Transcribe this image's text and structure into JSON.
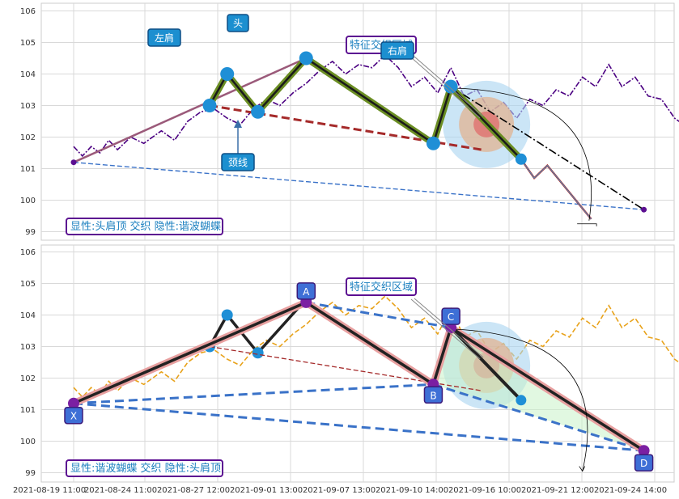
{
  "chart_data": [
    {
      "type": "line",
      "panel": "top",
      "ylim": [
        98.8,
        106.2
      ],
      "yticks": [
        99,
        100,
        101,
        102,
        103,
        104,
        105,
        106
      ],
      "grid": true,
      "price_series": {
        "color": "#4b0082",
        "points": [
          [
            0.0,
            101.7
          ],
          [
            0.2,
            101.4
          ],
          [
            0.4,
            101.7
          ],
          [
            0.6,
            101.5
          ],
          [
            0.8,
            101.9
          ],
          [
            1.0,
            101.6
          ],
          [
            1.3,
            102.0
          ],
          [
            1.6,
            101.8
          ],
          [
            2.0,
            102.2
          ],
          [
            2.3,
            101.9
          ],
          [
            2.6,
            102.5
          ],
          [
            2.9,
            102.8
          ],
          [
            3.2,
            102.9
          ],
          [
            3.5,
            102.6
          ],
          [
            3.8,
            102.4
          ],
          [
            4.1,
            102.9
          ],
          [
            4.4,
            103.2
          ],
          [
            4.7,
            103.0
          ],
          [
            5.0,
            103.4
          ],
          [
            5.3,
            103.7
          ],
          [
            5.6,
            104.1
          ],
          [
            5.9,
            104.4
          ],
          [
            6.2,
            104.0
          ],
          [
            6.5,
            104.3
          ],
          [
            6.8,
            104.2
          ],
          [
            7.1,
            104.6
          ],
          [
            7.4,
            104.2
          ],
          [
            7.7,
            103.6
          ],
          [
            8.0,
            103.9
          ],
          [
            8.3,
            103.4
          ],
          [
            8.6,
            104.2
          ],
          [
            8.9,
            103.3
          ],
          [
            9.2,
            103.5
          ],
          [
            9.5,
            102.8
          ],
          [
            9.8,
            103.1
          ],
          [
            10.1,
            102.6
          ],
          [
            10.4,
            103.2
          ],
          [
            10.7,
            103.0
          ],
          [
            11.0,
            103.5
          ],
          [
            11.3,
            103.3
          ],
          [
            11.6,
            103.9
          ],
          [
            11.9,
            103.6
          ],
          [
            12.2,
            104.3
          ],
          [
            12.5,
            103.6
          ],
          [
            12.8,
            103.9
          ],
          [
            13.1,
            103.3
          ],
          [
            13.4,
            103.2
          ],
          [
            13.7,
            102.6
          ],
          [
            14.0,
            102.3
          ],
          [
            14.3,
            102.0
          ],
          [
            14.6,
            101.9
          ],
          [
            14.9,
            102.3
          ],
          [
            15.2,
            102.8
          ],
          [
            15.5,
            103.3
          ],
          [
            15.8,
            103.6
          ]
        ]
      },
      "pattern_points": [
        {
          "label": "left-shoulder-start",
          "x": 3.1,
          "y": 103.0
        },
        {
          "label": "left-shoulder",
          "x": 3.5,
          "y": 104.0
        },
        {
          "label": "trough-1",
          "x": 4.2,
          "y": 102.8
        },
        {
          "label": "head",
          "x": 5.3,
          "y": 104.5
        },
        {
          "label": "trough-2",
          "x": 8.2,
          "y": 101.8
        },
        {
          "label": "right-shoulder",
          "x": 8.6,
          "y": 103.6
        },
        {
          "label": "right-end",
          "x": 10.2,
          "y": 101.3
        }
      ],
      "projection": [
        [
          10.2,
          101.3
        ],
        [
          10.5,
          100.7
        ],
        [
          10.8,
          101.1
        ],
        [
          11.8,
          99.4
        ]
      ],
      "origin_point": {
        "x": 0.0,
        "y": 101.2
      },
      "end_point": {
        "x": 13.0,
        "y": 99.7
      },
      "neckline": {
        "from": [
          3.1,
          103.0
        ],
        "to": [
          9.3,
          101.6
        ]
      },
      "annotations": {
        "left_shoulder": "左肩",
        "head": "头",
        "right_shoulder": "右肩",
        "neck": "颈线",
        "feature": "特征交织区域"
      },
      "caption": "显性:头肩顶 交织 隐性:谐波蝴蝶"
    },
    {
      "type": "line",
      "panel": "bottom",
      "ylim": [
        98.8,
        106.2
      ],
      "yticks": [
        99,
        100,
        101,
        102,
        103,
        104,
        105,
        106
      ],
      "grid": true,
      "price_series": {
        "color": "#e8a21a",
        "points": [
          [
            0.0,
            101.7
          ],
          [
            0.2,
            101.4
          ],
          [
            0.4,
            101.7
          ],
          [
            0.6,
            101.5
          ],
          [
            0.8,
            101.9
          ],
          [
            1.0,
            101.6
          ],
          [
            1.3,
            102.0
          ],
          [
            1.6,
            101.8
          ],
          [
            2.0,
            102.2
          ],
          [
            2.3,
            101.9
          ],
          [
            2.6,
            102.5
          ],
          [
            2.9,
            102.8
          ],
          [
            3.2,
            102.9
          ],
          [
            3.5,
            102.6
          ],
          [
            3.8,
            102.4
          ],
          [
            4.1,
            102.9
          ],
          [
            4.4,
            103.2
          ],
          [
            4.7,
            103.0
          ],
          [
            5.0,
            103.4
          ],
          [
            5.3,
            103.7
          ],
          [
            5.6,
            104.1
          ],
          [
            5.9,
            104.4
          ],
          [
            6.2,
            104.0
          ],
          [
            6.5,
            104.3
          ],
          [
            6.8,
            104.2
          ],
          [
            7.1,
            104.6
          ],
          [
            7.4,
            104.2
          ],
          [
            7.7,
            103.6
          ],
          [
            8.0,
            103.9
          ],
          [
            8.3,
            103.4
          ],
          [
            8.6,
            104.2
          ],
          [
            8.9,
            103.3
          ],
          [
            9.2,
            103.5
          ],
          [
            9.5,
            102.8
          ],
          [
            9.8,
            103.1
          ],
          [
            10.1,
            102.6
          ],
          [
            10.4,
            103.2
          ],
          [
            10.7,
            103.0
          ],
          [
            11.0,
            103.5
          ],
          [
            11.3,
            103.3
          ],
          [
            11.6,
            103.9
          ],
          [
            11.9,
            103.6
          ],
          [
            12.2,
            104.3
          ],
          [
            12.5,
            103.6
          ],
          [
            12.8,
            103.9
          ],
          [
            13.1,
            103.3
          ],
          [
            13.4,
            103.2
          ],
          [
            13.7,
            102.6
          ],
          [
            14.0,
            102.3
          ],
          [
            14.3,
            102.0
          ],
          [
            14.6,
            101.9
          ],
          [
            14.9,
            102.3
          ],
          [
            15.2,
            102.8
          ],
          [
            15.5,
            103.3
          ],
          [
            15.8,
            103.6
          ]
        ]
      },
      "pattern_points": [
        {
          "label": "X",
          "x": 0.0,
          "y": 101.2
        },
        {
          "label": "A",
          "x": 5.3,
          "y": 104.4
        },
        {
          "label": "B",
          "x": 8.2,
          "y": 101.8
        },
        {
          "label": "C",
          "x": 8.6,
          "y": 103.6
        },
        {
          "label": "D",
          "x": 13.0,
          "y": 99.7
        }
      ],
      "background_shape": [
        [
          3.1,
          103.0
        ],
        [
          3.5,
          104.0
        ],
        [
          4.2,
          102.8
        ],
        [
          5.3,
          104.5
        ]
      ],
      "extra_leg": {
        "from": [
          8.6,
          103.6
        ],
        "to": [
          10.2,
          101.3
        ]
      },
      "neckline": {
        "from": [
          3.1,
          103.0
        ],
        "to": [
          9.3,
          101.6
        ]
      },
      "annotations": {
        "feature": "特征交织区域"
      },
      "caption": "显性:谐波蝴蝶 交织 隐性:头肩顶"
    }
  ],
  "x_ticks": [
    "2021-08-19 11:00",
    "2021-08-24 11:00",
    "2021-08-27 12:00",
    "2021-09-01 13:00",
    "2021-09-07 13:00",
    "2021-09-10 14:00",
    "2021-09-16 10:00",
    "2021-09-21 12:00",
    "2021-09-24 14:00"
  ],
  "colors": {
    "frame": "#cccccc",
    "grid": "#d9d9d9",
    "marker": "#1f8fd6",
    "olive": "#6b8e23",
    "dark": "#1a1a1a",
    "neck": "#a52a2a",
    "dash_blue": "#3a72c8",
    "purple": "#5b0e91"
  }
}
